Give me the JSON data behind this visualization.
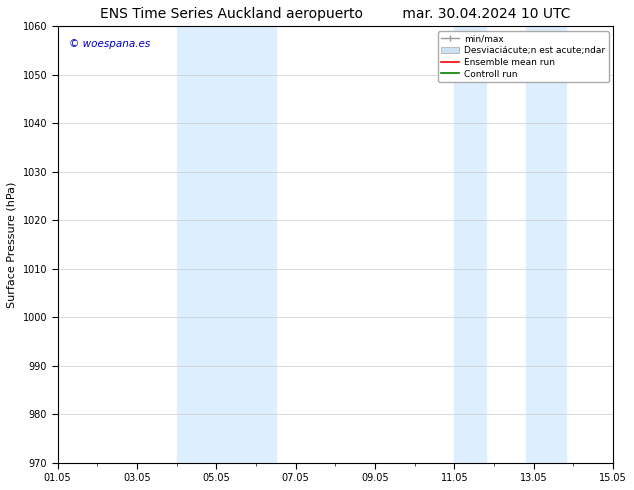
{
  "title_left": "ENS Time Series Auckland aeropuerto",
  "title_right": "mar. 30.04.2024 10 UTC",
  "ylabel": "Surface Pressure (hPa)",
  "ylim": [
    970,
    1060
  ],
  "yticks": [
    970,
    980,
    990,
    1000,
    1010,
    1020,
    1030,
    1040,
    1050,
    1060
  ],
  "xlim": [
    0,
    14
  ],
  "xtick_labels": [
    "01.05",
    "03.05",
    "05.05",
    "07.05",
    "09.05",
    "11.05",
    "13.05",
    "15.05"
  ],
  "xtick_positions": [
    0,
    2,
    4,
    6,
    8,
    10,
    12,
    14
  ],
  "shaded_regions": [
    {
      "x_start": 3.0,
      "x_end": 5.5,
      "color": "#ddeeff"
    },
    {
      "x_start": 10.0,
      "x_end": 10.8,
      "color": "#ddeeff"
    },
    {
      "x_start": 11.8,
      "x_end": 12.8,
      "color": "#ddeeff"
    }
  ],
  "watermark_text": "© woespana.es",
  "watermark_color": "#0000cc",
  "bg_color": "#ffffff",
  "axes_bg_color": "#ffffff",
  "grid_color": "#cccccc",
  "title_fontsize": 10,
  "tick_fontsize": 7,
  "ylabel_fontsize": 8,
  "legend_fontsize": 6.5
}
